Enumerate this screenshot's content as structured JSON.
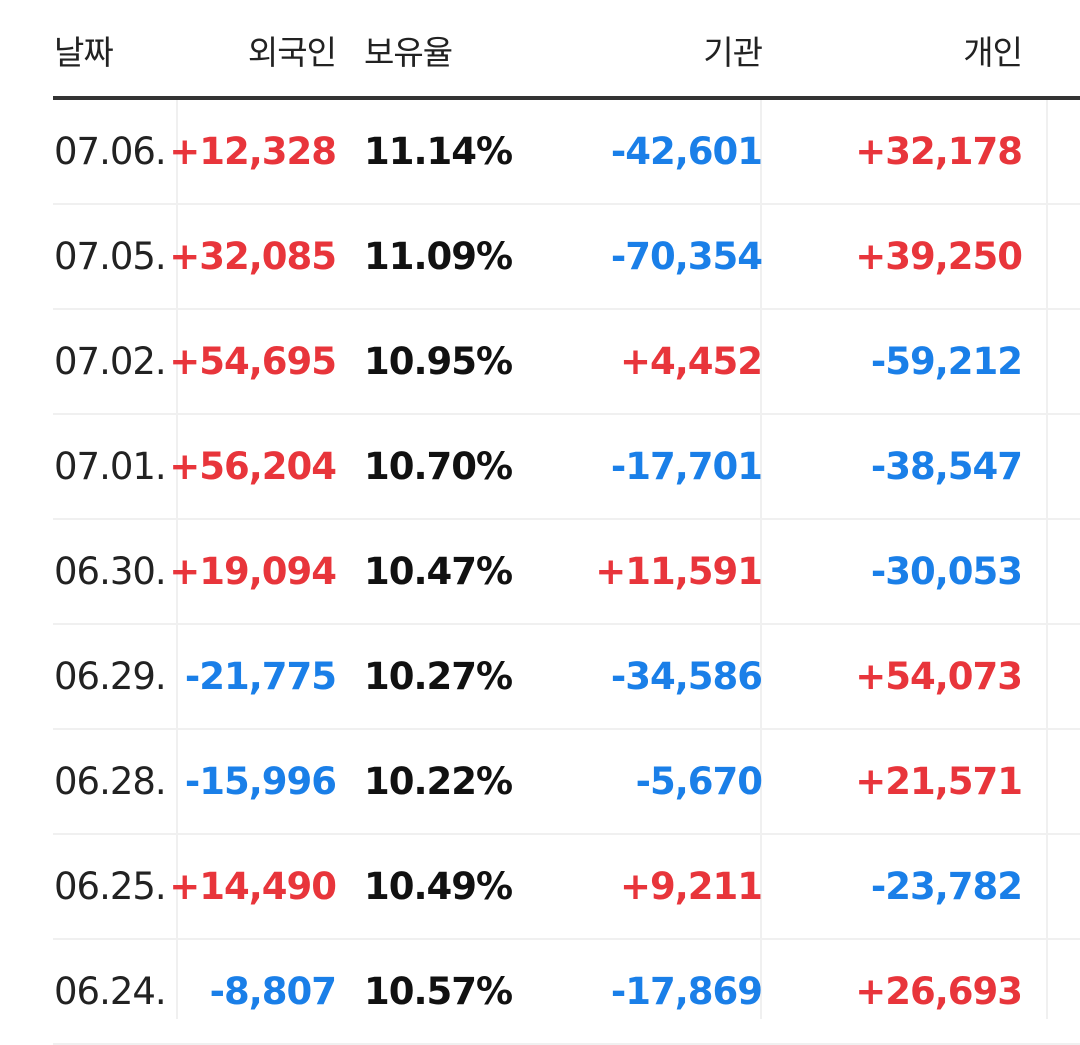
{
  "header": {
    "date": "날짜",
    "foreign": "외국인",
    "ratio": "보유율",
    "institution": "기관",
    "individual": "개인"
  },
  "colors": {
    "positive": "#e8353b",
    "negative": "#1a7fe8"
  },
  "rows": [
    {
      "date": "07.06.",
      "foreign": "+12,328",
      "ratio": "11.14%",
      "institution": "-42,601",
      "individual": "+32,178"
    },
    {
      "date": "07.05.",
      "foreign": "+32,085",
      "ratio": "11.09%",
      "institution": "-70,354",
      "individual": "+39,250"
    },
    {
      "date": "07.02.",
      "foreign": "+54,695",
      "ratio": "10.95%",
      "institution": "+4,452",
      "individual": "-59,212"
    },
    {
      "date": "07.01.",
      "foreign": "+56,204",
      "ratio": "10.70%",
      "institution": "-17,701",
      "individual": "-38,547"
    },
    {
      "date": "06.30.",
      "foreign": "+19,094",
      "ratio": "10.47%",
      "institution": "+11,591",
      "individual": "-30,053"
    },
    {
      "date": "06.29.",
      "foreign": "-21,775",
      "ratio": "10.27%",
      "institution": "-34,586",
      "individual": "+54,073"
    },
    {
      "date": "06.28.",
      "foreign": "-15,996",
      "ratio": "10.22%",
      "institution": "-5,670",
      "individual": "+21,571"
    },
    {
      "date": "06.25.",
      "foreign": "+14,490",
      "ratio": "10.49%",
      "institution": "+9,211",
      "individual": "-23,782"
    },
    {
      "date": "06.24.",
      "foreign": "-8,807",
      "ratio": "10.57%",
      "institution": "-17,869",
      "individual": "+26,693"
    }
  ]
}
